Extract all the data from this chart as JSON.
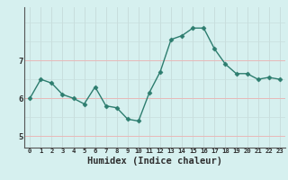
{
  "x": [
    0,
    1,
    2,
    3,
    4,
    5,
    6,
    7,
    8,
    9,
    10,
    11,
    12,
    13,
    14,
    15,
    16,
    17,
    18,
    19,
    20,
    21,
    22,
    23
  ],
  "y": [
    6.0,
    6.5,
    6.4,
    6.1,
    6.0,
    5.85,
    6.3,
    5.8,
    5.75,
    5.45,
    5.4,
    6.15,
    6.7,
    7.55,
    7.65,
    7.85,
    7.85,
    7.3,
    6.9,
    6.65,
    6.65,
    6.5,
    6.55,
    6.5
  ],
  "line_color": "#2d7d6f",
  "marker": "D",
  "marker_size": 2.5,
  "bg_color": "#d6f0ef",
  "grid_color_v": "#c8dedd",
  "grid_color_h": "#e8b8b8",
  "tick_label_color": "#2e2e2e",
  "xlabel": "Humidex (Indice chaleur)",
  "xlabel_fontsize": 7.5,
  "ylabel_ticks": [
    5,
    6,
    7
  ],
  "ylim": [
    4.7,
    8.4
  ],
  "xlim": [
    -0.5,
    23.5
  ],
  "x_tick_labels": [
    "0",
    "1",
    "2",
    "3",
    "4",
    "5",
    "6",
    "7",
    "8",
    "9",
    "10",
    "11",
    "12",
    "13",
    "14",
    "15",
    "16",
    "17",
    "18",
    "19",
    "20",
    "21",
    "22",
    "23"
  ]
}
